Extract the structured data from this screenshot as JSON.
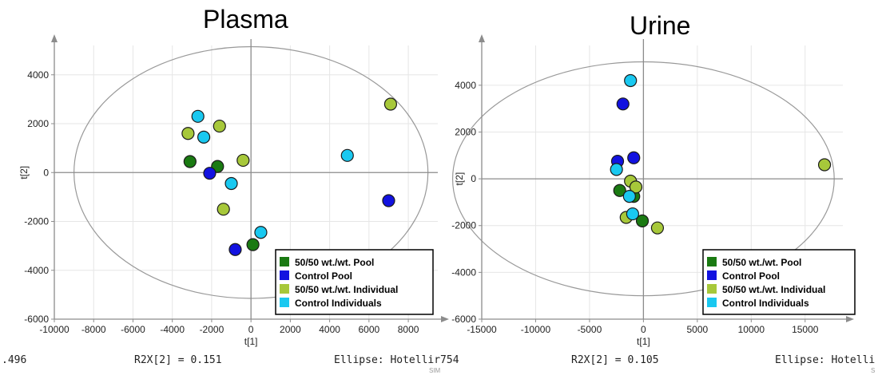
{
  "colors": {
    "pool_5050": "#1a7a12",
    "control_pool": "#1212e0",
    "individual_5050": "#a7c83a",
    "control_individuals": "#19c8f0",
    "grid": "#e6e6e6",
    "axis": "#8c8c8c",
    "ellipse": "#999999"
  },
  "footer": {
    "plasma_left": ".496",
    "plasma_r2x": "R2X[2] = 0.151",
    "plasma_ellipse": "Ellipse: Hotellir754",
    "plasma_sub": "SIM",
    "urine_r2x": "R2X[2] = 0.105",
    "urine_ellipse": "Ellipse: Hotelli",
    "urine_sub": "S"
  },
  "chart_data": [
    {
      "type": "scatter",
      "title": "Plasma",
      "xlabel": "t[1]",
      "ylabel": "t[2]",
      "xlim": [
        -10000,
        9500
      ],
      "ylim": [
        -6000,
        5200
      ],
      "xticks": [
        -10000,
        -8000,
        -6000,
        -4000,
        -2000,
        0,
        2000,
        4000,
        6000,
        8000
      ],
      "yticks": [
        -6000,
        -4000,
        -2000,
        0,
        2000,
        4000
      ],
      "grid": true,
      "ellipse": {
        "rx": 9000,
        "ry": 5150
      },
      "legend_position": "bottom-right",
      "legend": [
        "50/50 wt./wt. Pool",
        "Control Pool",
        "50/50 wt./wt. Individual",
        "Control Individuals"
      ],
      "series": [
        {
          "name": "50/50 wt./wt. Pool",
          "color_key": "pool_5050",
          "points": [
            [
              -3100,
              450
            ],
            [
              -1700,
              250
            ],
            [
              100,
              -2950
            ]
          ]
        },
        {
          "name": "Control Pool",
          "color_key": "control_pool",
          "points": [
            [
              -2100,
              -30
            ],
            [
              -800,
              -3150
            ],
            [
              7000,
              -1150
            ]
          ]
        },
        {
          "name": "50/50 wt./wt. Individual",
          "color_key": "individual_5050",
          "points": [
            [
              -3200,
              1600
            ],
            [
              -1600,
              1900
            ],
            [
              -400,
              500
            ],
            [
              -1400,
              -1500
            ],
            [
              7100,
              2800
            ]
          ]
        },
        {
          "name": "Control Individuals",
          "color_key": "control_individuals",
          "points": [
            [
              -2700,
              2300
            ],
            [
              -2400,
              1450
            ],
            [
              -1000,
              -450
            ],
            [
              500,
              -2450
            ],
            [
              4900,
              700
            ]
          ]
        }
      ]
    },
    {
      "type": "scatter",
      "title": "Urine",
      "xlabel": "t[1]",
      "ylabel": "t[2]",
      "xlim": [
        -15000,
        18500
      ],
      "ylim": [
        -6000,
        5700
      ],
      "xticks": [
        -15000,
        -10000,
        -5000,
        0,
        5000,
        10000,
        15000
      ],
      "yticks": [
        -6000,
        -4000,
        -2000,
        0,
        2000,
        4000
      ],
      "grid": true,
      "ellipse": {
        "rx": 17700,
        "ry": 5000
      },
      "legend_position": "bottom-right",
      "legend": [
        "50/50 wt./wt. Pool",
        "Control Pool",
        "50/50 wt./wt. Individual",
        "Control Individuals"
      ],
      "series": [
        {
          "name": "50/50 wt./wt. Pool",
          "color_key": "pool_5050",
          "points": [
            [
              -2200,
              -500
            ],
            [
              -900,
              -750
            ],
            [
              -100,
              -1800
            ]
          ]
        },
        {
          "name": "Control Pool",
          "color_key": "control_pool",
          "points": [
            [
              -1900,
              3200
            ],
            [
              -2400,
              750
            ],
            [
              -900,
              900
            ]
          ]
        },
        {
          "name": "50/50 wt./wt. Individual",
          "color_key": "individual_5050",
          "points": [
            [
              -1200,
              -100
            ],
            [
              -700,
              -350
            ],
            [
              -1600,
              -1650
            ],
            [
              1300,
              -2100
            ],
            [
              16800,
              600
            ]
          ]
        },
        {
          "name": "Control Individuals",
          "color_key": "control_individuals",
          "points": [
            [
              -1200,
              4200
            ],
            [
              -2500,
              400
            ],
            [
              -1300,
              -750
            ],
            [
              -1000,
              -1500
            ]
          ]
        }
      ]
    }
  ]
}
